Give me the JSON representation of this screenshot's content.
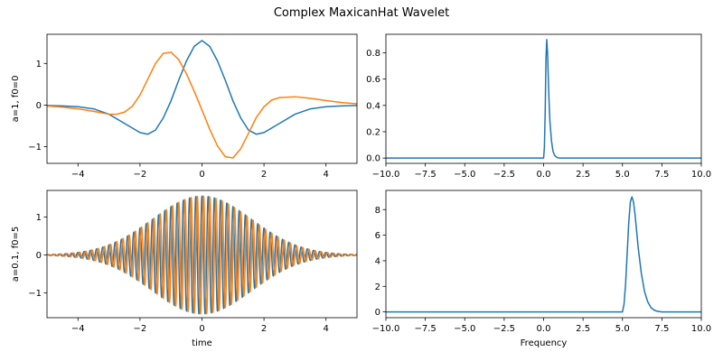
{
  "figure": {
    "title": "Complex MaxicanHat Wavelet"
  },
  "colors": {
    "real": "#1f77b4",
    "imag": "#ff7f0e"
  },
  "chart_data": [
    {
      "name": "time-a1",
      "type": "line",
      "title": "",
      "xlabel": "",
      "ylabel": "a=1, f0=0",
      "xlim": [
        -5,
        5
      ],
      "ylim": [
        -1.4,
        1.7
      ],
      "xticks": [
        -4,
        -2,
        0,
        2,
        4
      ],
      "xtick_labels": [
        "−4",
        "−2",
        "0",
        "2",
        "4"
      ],
      "yticks": [
        -1,
        0,
        1
      ],
      "ytick_labels": [
        "−1",
        "0",
        "1"
      ],
      "series": [
        {
          "color": "#1f77b4",
          "x": [
            -5,
            -4.5,
            -4,
            -3.5,
            -3,
            -2.5,
            -2,
            -1.75,
            -1.5,
            -1.25,
            -1,
            -0.75,
            -0.5,
            -0.25,
            0,
            0.25,
            0.5,
            0.75,
            1,
            1.25,
            1.5,
            1.75,
            2,
            2.5,
            3,
            3.5,
            4,
            4.5,
            5
          ],
          "y": [
            -0.01,
            -0.02,
            -0.04,
            -0.09,
            -0.22,
            -0.44,
            -0.66,
            -0.7,
            -0.6,
            -0.31,
            0.1,
            0.6,
            1.06,
            1.41,
            1.55,
            1.41,
            1.06,
            0.6,
            0.1,
            -0.31,
            -0.6,
            -0.7,
            -0.66,
            -0.44,
            -0.22,
            -0.09,
            -0.04,
            -0.02,
            -0.01
          ]
        },
        {
          "color": "#ff7f0e",
          "x": [
            -5,
            -4.5,
            -4,
            -3.5,
            -3,
            -2.75,
            -2.5,
            -2.25,
            -2,
            -1.75,
            -1.5,
            -1.25,
            -1,
            -0.75,
            -0.5,
            -0.25,
            0,
            0.25,
            0.5,
            0.75,
            1,
            1.25,
            1.5,
            1.75,
            2,
            2.25,
            2.5,
            3,
            3.5,
            4,
            4.5,
            5
          ],
          "y": [
            -0.02,
            -0.05,
            -0.09,
            -0.15,
            -0.22,
            -0.22,
            -0.17,
            -0.03,
            0.24,
            0.62,
            1.0,
            1.24,
            1.27,
            1.09,
            0.75,
            0.33,
            -0.12,
            -0.58,
            -0.98,
            -1.24,
            -1.27,
            -1.05,
            -0.68,
            -0.3,
            -0.04,
            0.12,
            0.18,
            0.2,
            0.16,
            0.11,
            0.06,
            0.03
          ]
        }
      ]
    },
    {
      "name": "freq-a1",
      "type": "line",
      "title": "",
      "xlabel": "",
      "ylabel": "",
      "xlim": [
        -10,
        10
      ],
      "ylim": [
        -0.04,
        0.94
      ],
      "xticks": [
        -10,
        -7.5,
        -5,
        -2.5,
        0,
        2.5,
        5,
        7.5,
        10
      ],
      "xtick_labels": [
        "−10.0",
        "−7.5",
        "−5.0",
        "−2.5",
        "0.0",
        "2.5",
        "5.0",
        "7.5",
        "10.0"
      ],
      "yticks": [
        0,
        0.2,
        0.4,
        0.6,
        0.8
      ],
      "ytick_labels": [
        "0.0",
        "0.2",
        "0.4",
        "0.6",
        "0.8"
      ],
      "series": [
        {
          "color": "#1f77b4",
          "x": [
            -10,
            0.0,
            0.05,
            0.1,
            0.15,
            0.2,
            0.25,
            0.3,
            0.35,
            0.4,
            0.5,
            0.6,
            0.7,
            0.85,
            1.0,
            10
          ],
          "y": [
            0,
            0,
            0.08,
            0.35,
            0.75,
            0.9,
            0.8,
            0.6,
            0.42,
            0.28,
            0.13,
            0.05,
            0.02,
            0.005,
            0,
            0
          ]
        }
      ]
    },
    {
      "name": "time-a01",
      "type": "line",
      "title": "",
      "xlabel": "time",
      "ylabel": "a=0.1, f0=5",
      "xlim": [
        -5,
        5
      ],
      "ylim": [
        -1.65,
        1.7
      ],
      "xticks": [
        -4,
        -2,
        0,
        2,
        4
      ],
      "xtick_labels": [
        "−4",
        "−2",
        "0",
        "2",
        "4"
      ],
      "yticks": [
        -1,
        0,
        1
      ],
      "ytick_labels": [
        "−1",
        "0",
        "1"
      ],
      "amplitude": 1.55,
      "envelope_sigma": 1.6,
      "carrier_frequency": 5,
      "series": [
        {
          "color": "#1f77b4",
          "phase": "cos"
        },
        {
          "color": "#ff7f0e",
          "phase": "sin"
        }
      ]
    },
    {
      "name": "freq-a01",
      "type": "line",
      "title": "",
      "xlabel": "Frequency",
      "ylabel": "",
      "xlim": [
        -10,
        10
      ],
      "ylim": [
        -0.45,
        9.5
      ],
      "xticks": [
        -10,
        -7.5,
        -5,
        -2.5,
        0,
        2.5,
        5,
        7.5,
        10
      ],
      "xtick_labels": [
        "−10.0",
        "−7.5",
        "−5.0",
        "−2.5",
        "0.0",
        "2.5",
        "5.0",
        "7.5",
        "10.0"
      ],
      "yticks": [
        0,
        2,
        4,
        6,
        8
      ],
      "ytick_labels": [
        "0",
        "2",
        "4",
        "6",
        "8"
      ],
      "series": [
        {
          "color": "#1f77b4",
          "x": [
            -10,
            5.0,
            5.1,
            5.2,
            5.3,
            5.4,
            5.5,
            5.6,
            5.7,
            5.8,
            5.9,
            6.0,
            6.2,
            6.4,
            6.6,
            6.8,
            7.0,
            7.2,
            7.5,
            10
          ],
          "y": [
            0,
            0,
            0.6,
            2.2,
            4.6,
            7.0,
            8.6,
            9.0,
            8.6,
            7.6,
            6.3,
            5.0,
            3.0,
            1.6,
            0.8,
            0.35,
            0.15,
            0.05,
            0,
            0
          ]
        }
      ]
    }
  ]
}
